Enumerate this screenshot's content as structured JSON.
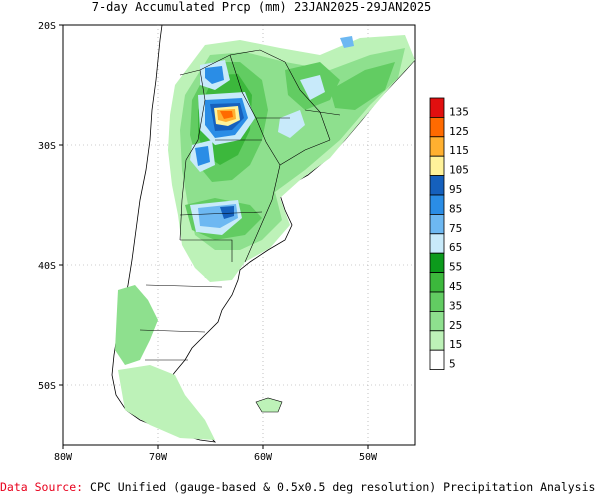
{
  "title": "7-day Accumulated Prcp (mm) 23JAN2025-29JAN2025",
  "footer": {
    "source_label": "Data Source:",
    "source_text": "CPC Unified (gauge-based & 0.5x0.5 deg resolution) Precipitation Analysis"
  },
  "axes": {
    "lat_ticks": [
      "20S",
      "30S",
      "40S",
      "50S"
    ],
    "lon_ticks": [
      "80W",
      "70W",
      "60W",
      "50W"
    ]
  },
  "legend": {
    "labels": [
      "135",
      "125",
      "115",
      "105",
      "95",
      "85",
      "75",
      "65",
      "55",
      "45",
      "35",
      "25",
      "15",
      "5"
    ],
    "colors": [
      "#e10f0f",
      "#ff6a00",
      "#ffb030",
      "#fff29a",
      "#1560bd",
      "#2a8de6",
      "#6db8f2",
      "#c8eafa",
      "#0c9a1c",
      "#3cb83c",
      "#62cc62",
      "#8ee08e",
      "#bdf2b8",
      "#ffffff"
    ]
  },
  "map": {
    "region": "South America (Southern Cone)",
    "land_color": "#ffffff",
    "grid": true
  }
}
